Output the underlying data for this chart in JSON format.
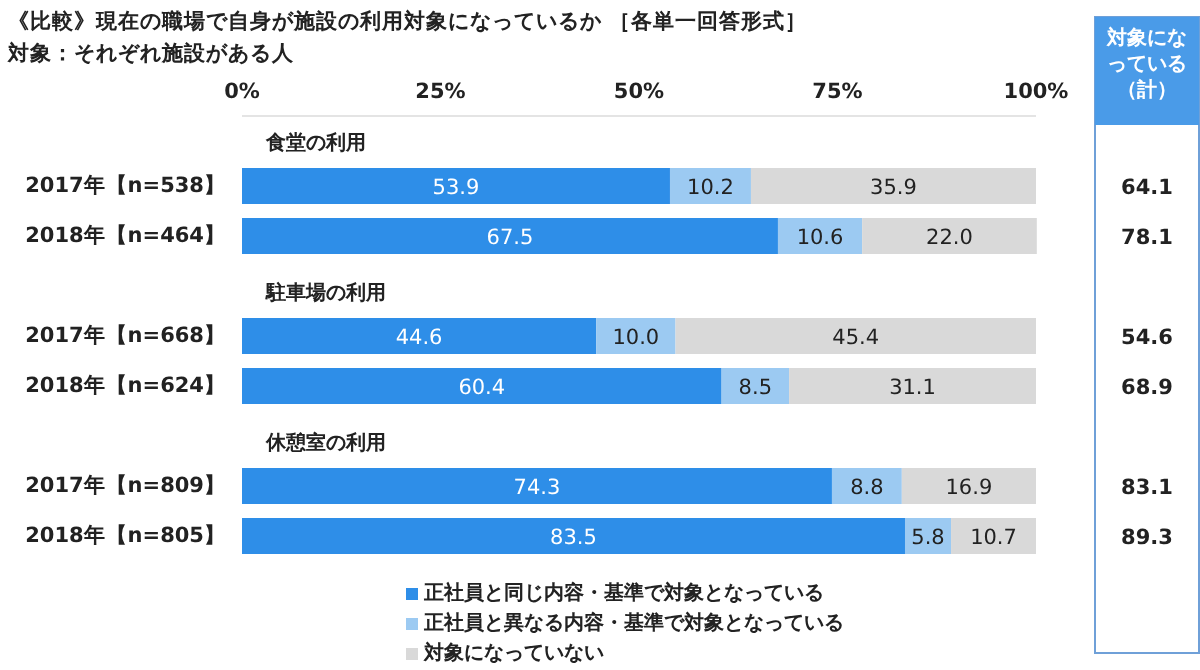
{
  "chart_data": [
    {
      "type": "bar",
      "orientation": "horizontal",
      "stacked": true,
      "title": "《比較》現在の職場で自身が施設の利用対象になっているか ［各単一回答形式］",
      "subtitle": "対象：それぞれ施設がある人",
      "categories": [
        "2017年【n=538】",
        "2018年【n=464】",
        "2017年【n=668】",
        "2018年【n=624】",
        "2017年【n=809】",
        "2018年【n=805】"
      ],
      "series": [
        {
          "name": "正社員と同じ内容・基準で対象となっている",
          "color": "#2e8ee8",
          "values": [
            53.9,
            67.5,
            44.6,
            60.4,
            74.3,
            83.5
          ],
          "value_labels": [
            "53.9",
            "67.5",
            "44.6",
            "60.4",
            "74.3",
            "83.5"
          ]
        },
        {
          "name": "正社員と異なる内容・基準で対象となっている",
          "color": "#9ccaf2",
          "values": [
            10.2,
            10.6,
            10.0,
            8.5,
            8.8,
            5.8
          ],
          "value_labels": [
            "10.2",
            "10.6",
            "10.0",
            "8.5",
            "8.8",
            "5.8"
          ]
        },
        {
          "name": "対象になっていない",
          "color": "#d9d9d9",
          "values": [
            35.9,
            22.0,
            45.4,
            31.1,
            16.9,
            10.7
          ],
          "value_labels": [
            "35.9",
            "22.0",
            "45.4",
            "31.1",
            "16.9",
            "10.7"
          ]
        }
      ],
      "xlim": [
        0,
        100
      ],
      "xticks": [
        {
          "value": 0,
          "label": "0%"
        },
        {
          "value": 25,
          "label": "25%"
        },
        {
          "value": 50,
          "label": "50%"
        },
        {
          "value": 75,
          "label": "75%"
        },
        {
          "value": 100,
          "label": "100%"
        }
      ],
      "annotations": [
        "食堂の利用",
        "駐車場の利用",
        "休憩室の利用"
      ],
      "legend": "bottom"
    },
    {
      "type": "other",
      "title": "対象になっている（計）",
      "annotations": [
        "64.1",
        "78.1",
        "54.6",
        "68.9",
        "83.1",
        "89.3"
      ]
    }
  ]
}
